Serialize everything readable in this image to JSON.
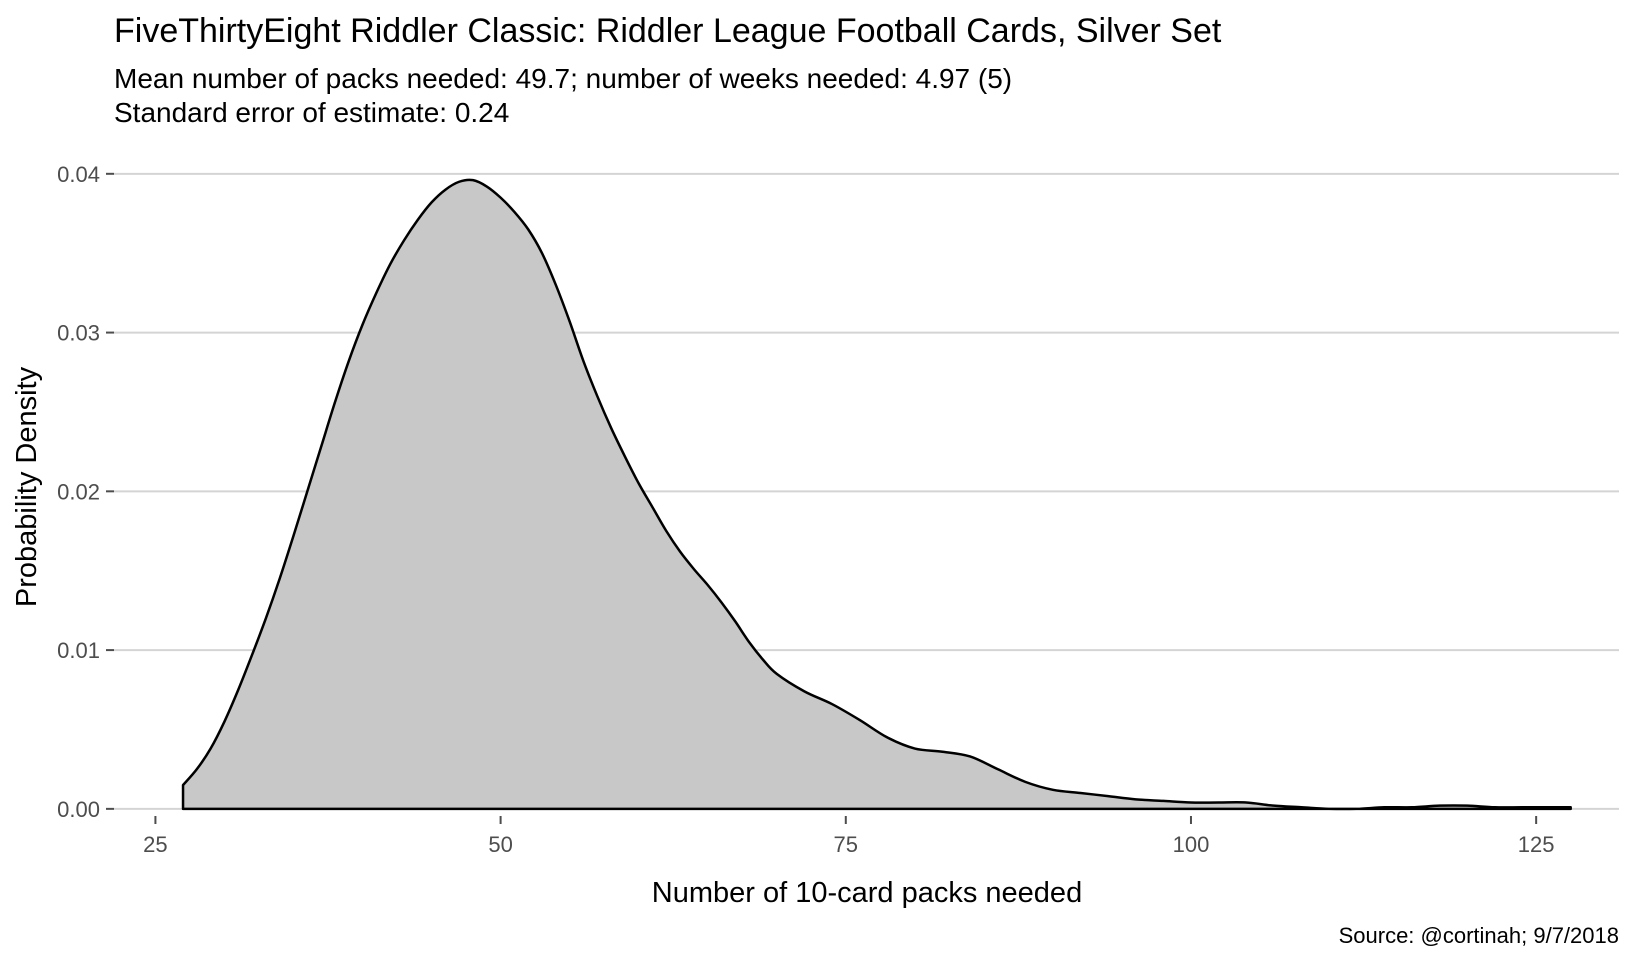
{
  "chart_data": {
    "type": "area",
    "title": "FiveThirtyEight Riddler Classic: Riddler League Football Cards, Silver Set",
    "subtitle_lines": [
      "Mean number of packs needed: 49.7; number of weeks needed: 4.97 (5)",
      "Standard error of estimate: 0.24"
    ],
    "xlabel": "Number of 10-card packs needed",
    "ylabel": "Probability Density",
    "caption": "Source: @cortinah; 9/7/2018",
    "xlim": [
      22,
      131
    ],
    "ylim": [
      -0.00045,
      0.0415
    ],
    "x_ticks": [
      25,
      50,
      75,
      100,
      125
    ],
    "x_tick_labels": [
      "25",
      "50",
      "75",
      "100",
      "125"
    ],
    "y_ticks": [
      0,
      0.01,
      0.02,
      0.03,
      0.04
    ],
    "y_tick_labels": [
      "0.00",
      "0.01",
      "0.02",
      "0.03",
      "0.04"
    ],
    "grid": "horizontal",
    "fill_color": "#c8c8c8",
    "line_color": "#000000",
    "x": [
      27,
      28,
      29,
      30,
      31,
      32,
      33,
      34,
      35,
      36,
      37,
      38,
      39,
      40,
      41,
      42,
      43,
      44,
      45,
      46,
      47,
      48,
      49,
      50,
      51,
      52,
      53,
      54,
      55,
      56,
      57,
      58,
      59,
      60,
      61,
      62,
      63,
      64,
      65,
      66,
      67,
      68,
      69,
      70,
      72,
      74,
      76,
      78,
      80,
      82,
      84,
      86,
      88,
      90,
      92,
      94,
      96,
      98,
      100,
      102,
      104,
      106,
      108,
      110,
      112,
      114,
      116,
      118,
      120,
      122,
      124,
      126,
      127.5
    ],
    "y": [
      0.0015,
      0.0025,
      0.0038,
      0.0055,
      0.0075,
      0.0097,
      0.012,
      0.0145,
      0.0172,
      0.02,
      0.0228,
      0.0256,
      0.0282,
      0.0305,
      0.0325,
      0.0343,
      0.0358,
      0.0371,
      0.0382,
      0.039,
      0.0395,
      0.0396,
      0.0392,
      0.0385,
      0.0376,
      0.0365,
      0.035,
      0.033,
      0.0307,
      0.0282,
      0.026,
      0.024,
      0.0222,
      0.0205,
      0.019,
      0.0175,
      0.0162,
      0.0151,
      0.0141,
      0.013,
      0.0118,
      0.0105,
      0.0094,
      0.0085,
      0.0074,
      0.0066,
      0.0056,
      0.0045,
      0.0038,
      0.0036,
      0.0033,
      0.0025,
      0.0017,
      0.0012,
      0.001,
      0.0008,
      0.0006,
      0.0005,
      0.0004,
      0.0004,
      0.0004,
      0.0002,
      0.0001,
      0.0,
      0.0,
      0.0001,
      0.0001,
      0.0002,
      0.0002,
      0.0001,
      0.0001,
      0.0001,
      0.0001
    ]
  }
}
